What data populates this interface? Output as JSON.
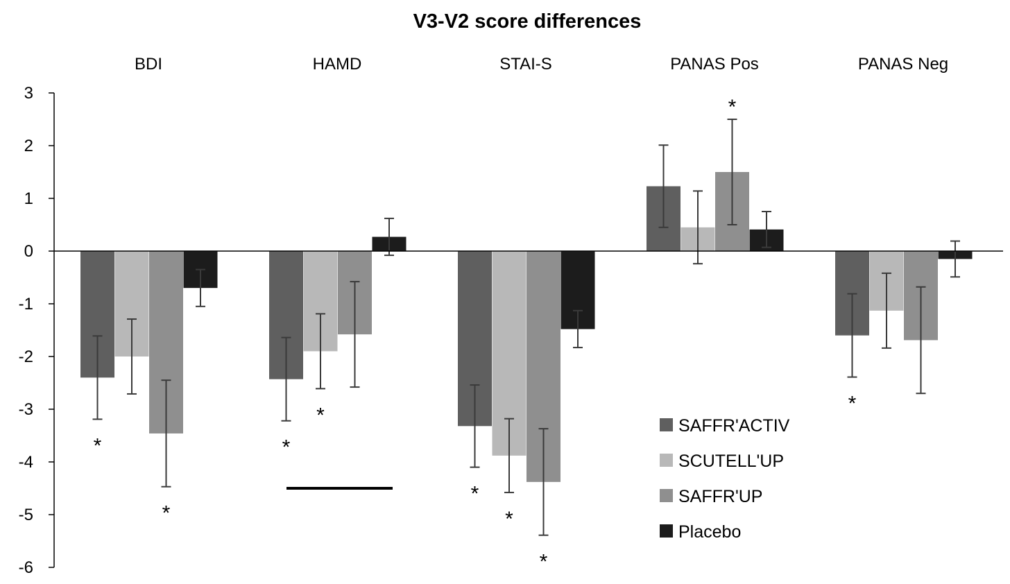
{
  "chart_data": {
    "type": "bar",
    "title": "V3-V2 score differences",
    "xlabel": "",
    "ylabel": "",
    "ylim": [
      -6,
      3
    ],
    "yticks": [
      3,
      2,
      1,
      0,
      -1,
      -2,
      -3,
      -4,
      -5,
      -6
    ],
    "categories": [
      "BDI",
      "HAMD",
      "STAI-S",
      "PANAS Pos",
      "PANAS Neg"
    ],
    "legend_position": "bottom-right",
    "grid": false,
    "series": [
      {
        "name": "SAFFR'ACTIV",
        "color": "#5f5f5f",
        "values": [
          -2.4,
          -2.43,
          -3.32,
          1.23,
          -1.6
        ],
        "errors": [
          0.79,
          0.79,
          0.78,
          0.78,
          0.79
        ],
        "significant": [
          true,
          true,
          true,
          false,
          true
        ]
      },
      {
        "name": "SCUTELL'UP",
        "color": "#b8b8b8",
        "values": [
          -2.0,
          -1.9,
          -3.88,
          0.45,
          -1.13
        ],
        "errors": [
          0.71,
          0.71,
          0.7,
          0.69,
          0.71
        ],
        "significant": [
          false,
          true,
          true,
          false,
          false
        ]
      },
      {
        "name": "SAFFR'UP",
        "color": "#8f8f8f",
        "values": [
          -3.46,
          -1.58,
          -4.38,
          1.5,
          -1.69
        ],
        "errors": [
          1.01,
          1.0,
          1.01,
          1.0,
          1.01
        ],
        "significant": [
          true,
          false,
          true,
          true,
          false
        ]
      },
      {
        "name": "Placebo",
        "color": "#1c1c1c",
        "values": [
          -0.7,
          0.27,
          -1.48,
          0.41,
          -0.15
        ],
        "errors": [
          0.35,
          0.35,
          0.35,
          0.34,
          0.34
        ],
        "significant": [
          false,
          false,
          false,
          false,
          false
        ]
      }
    ],
    "annotations": [
      {
        "type": "significance-marker",
        "text": "*"
      },
      {
        "type": "horizontal-bar",
        "category": "HAMD",
        "value": -4.5
      }
    ]
  }
}
